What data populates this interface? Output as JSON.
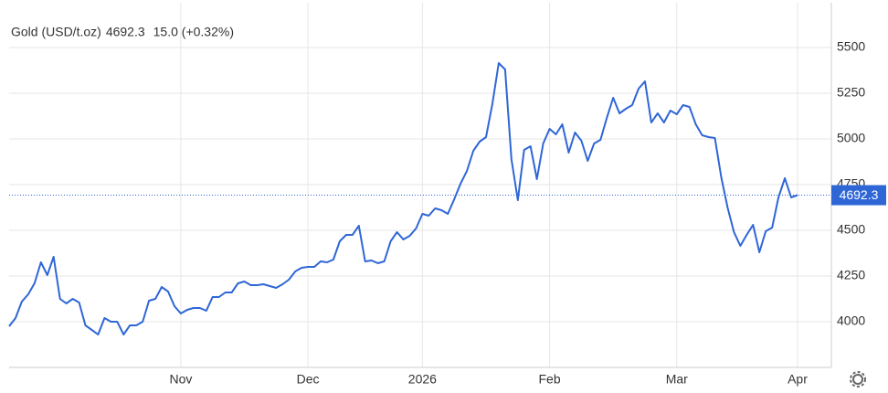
{
  "chart_data": {
    "type": "line",
    "title": "Gold (USD/t.oz)",
    "change": "15.0 (+0.32%)",
    "categories": [
      null,
      null,
      null,
      null,
      null,
      null,
      null,
      null,
      null,
      null,
      null,
      null,
      null,
      null,
      null,
      null,
      null,
      null,
      null,
      null,
      null,
      null,
      null,
      null,
      null,
      null,
      null,
      "Nov",
      null,
      null,
      null,
      null,
      null,
      null,
      null,
      null,
      null,
      null,
      null,
      null,
      null,
      null,
      null,
      null,
      null,
      null,
      null,
      "Dec",
      null,
      null,
      null,
      null,
      null,
      null,
      null,
      null,
      null,
      null,
      null,
      null,
      null,
      null,
      null,
      null,
      null,
      "2026",
      null,
      null,
      null,
      null,
      null,
      null,
      null,
      null,
      null,
      null,
      null,
      null,
      null,
      null,
      null,
      null,
      null,
      null,
      null,
      "Feb",
      null,
      null,
      null,
      null,
      null,
      null,
      null,
      null,
      null,
      null,
      null,
      null,
      null,
      null,
      null,
      null,
      null,
      null,
      null,
      "Mar",
      null,
      null,
      null,
      null,
      null,
      null,
      null,
      null,
      null,
      null,
      null,
      null,
      null,
      null,
      null,
      null,
      null,
      null,
      "Apr"
    ],
    "series": [
      {
        "name": "Gold",
        "color": "#2f66d6",
        "values": [
          3975,
          4020,
          4110,
          4150,
          4210,
          4325,
          4255,
          4355,
          4125,
          4100,
          4125,
          4105,
          3980,
          3955,
          3930,
          4020,
          4000,
          4000,
          3930,
          3980,
          3980,
          4000,
          4115,
          4125,
          4190,
          4165,
          4085,
          4045,
          4065,
          4075,
          4075,
          4060,
          4135,
          4135,
          4160,
          4160,
          4210,
          4220,
          4200,
          4200,
          4205,
          4195,
          4185,
          4205,
          4230,
          4275,
          4295,
          4300,
          4300,
          4330,
          4325,
          4340,
          4440,
          4475,
          4475,
          4525,
          4330,
          4335,
          4320,
          4330,
          4440,
          4490,
          4450,
          4470,
          4510,
          4590,
          4580,
          4620,
          4610,
          4590,
          4670,
          4755,
          4825,
          4935,
          4985,
          5010,
          5190,
          5415,
          5380,
          4890,
          4665,
          4940,
          4960,
          4780,
          4975,
          5055,
          5025,
          5080,
          4925,
          5035,
          4990,
          4880,
          4975,
          4995,
          5115,
          5225,
          5140,
          5165,
          5185,
          5275,
          5315,
          5090,
          5140,
          5090,
          5155,
          5135,
          5185,
          5175,
          5080,
          5020,
          5010,
          5005,
          4790,
          4625,
          4490,
          4415,
          4475,
          4530,
          4380,
          4495,
          4515,
          4680,
          4785,
          4680,
          4692.3
        ]
      }
    ],
    "ylim": [
      3750,
      5745
    ],
    "yticks": [
      4000,
      4250,
      4500,
      4750,
      5000,
      5250,
      5500
    ],
    "grid": true,
    "change_color": "#3bb33b",
    "price_color": "#2f66d6"
  }
}
